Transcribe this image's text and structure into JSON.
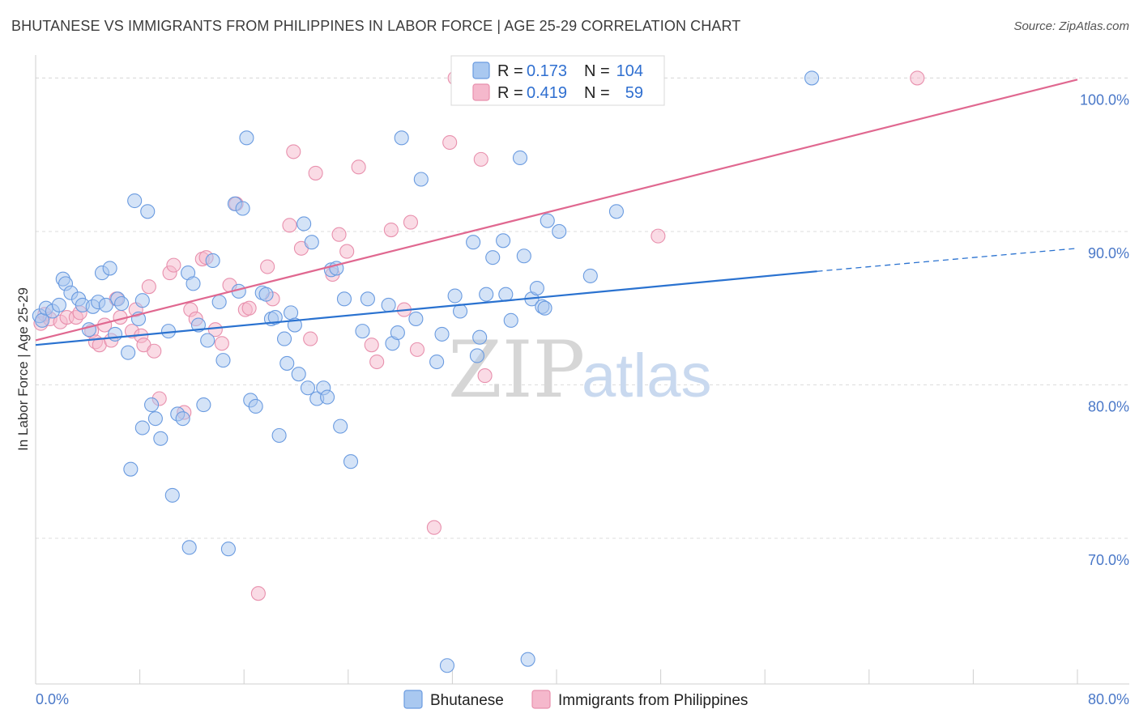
{
  "header": {
    "title": "BHUTANESE VS IMMIGRANTS FROM PHILIPPINES IN LABOR FORCE | AGE 25-29 CORRELATION CHART",
    "source": "Source: ZipAtlas.com"
  },
  "watermark": {
    "zip": "ZIP",
    "atlas": "atlas"
  },
  "legend": {
    "rows": [
      {
        "r_label": "R =",
        "r_value": "0.173",
        "n_label": "N =",
        "n_value": "104"
      },
      {
        "r_label": "R =",
        "r_value": "0.419",
        "n_label": "N =",
        "n_value": "59"
      }
    ]
  },
  "bottom_legend": [
    {
      "label": "Bhutanese"
    },
    {
      "label": "Immigrants from Philippines"
    }
  ],
  "colors": {
    "blue_fill": "#a9c8f0",
    "blue_stroke": "#6a9be0",
    "blue_line": "#2a72d0",
    "pink_fill": "#f5b8cc",
    "pink_stroke": "#e890ad",
    "pink_line": "#e06890",
    "grid": "#dcdcdc",
    "axis_text": "#4a78c8"
  },
  "chart_data": {
    "type": "scatter",
    "title": "BHUTANESE VS IMMIGRANTS FROM PHILIPPINES IN LABOR FORCE | AGE 25-29 CORRELATION CHART",
    "xlabel": "",
    "ylabel": "In Labor Force | Age 25-29",
    "xlim": [
      0,
      80
    ],
    "ylim": [
      60.5,
      101.5
    ],
    "x_tick_labels": [
      "0.0%",
      "80.0%"
    ],
    "y_ticks": [
      70,
      80,
      90,
      100
    ],
    "y_tick_labels": [
      "70.0%",
      "80.0%",
      "90.0%",
      "100.0%"
    ],
    "grid": true,
    "legend_position": "top-center",
    "series": [
      {
        "name": "Bhutanese",
        "r": 0.173,
        "n": 104,
        "trend": {
          "x": [
            0,
            60
          ],
          "y": [
            82.6,
            87.4
          ],
          "extended_to": [
            80,
            88.9
          ]
        },
        "points": [
          [
            0.3,
            84.5
          ],
          [
            0.5,
            84.2
          ],
          [
            0.8,
            85
          ],
          [
            1.3,
            84.8
          ],
          [
            1.8,
            85.2
          ],
          [
            2.1,
            86.9
          ],
          [
            2.3,
            86.6
          ],
          [
            2.7,
            86
          ],
          [
            3.3,
            85.6
          ],
          [
            3.6,
            85.2
          ],
          [
            4.1,
            83.6
          ],
          [
            4.4,
            85.1
          ],
          [
            4.8,
            85.4
          ],
          [
            5.1,
            87.3
          ],
          [
            5.4,
            85.2
          ],
          [
            5.7,
            87.6
          ],
          [
            6.1,
            83.3
          ],
          [
            6.3,
            85.6
          ],
          [
            6.6,
            85.3
          ],
          [
            7.1,
            82.1
          ],
          [
            7.6,
            92
          ],
          [
            7.9,
            84.3
          ],
          [
            8.2,
            85.5
          ],
          [
            8.6,
            91.3
          ],
          [
            8.9,
            78.7
          ],
          [
            9.2,
            77.8
          ],
          [
            9.6,
            76.5
          ],
          [
            10.2,
            83.5
          ],
          [
            10.5,
            72.8
          ],
          [
            10.9,
            78.1
          ],
          [
            11.3,
            77.8
          ],
          [
            11.7,
            87.3
          ],
          [
            12.1,
            86.6
          ],
          [
            12.5,
            83.9
          ],
          [
            12.9,
            78.7
          ],
          [
            13.2,
            82.9
          ],
          [
            13.6,
            88.1
          ],
          [
            14.1,
            85.4
          ],
          [
            14.4,
            81.6
          ],
          [
            15.3,
            91.8
          ],
          [
            15.6,
            86.1
          ],
          [
            15.9,
            91.5
          ],
          [
            16.2,
            96.1
          ],
          [
            16.5,
            79
          ],
          [
            16.9,
            78.6
          ],
          [
            17.4,
            86
          ],
          [
            17.7,
            85.9
          ],
          [
            18.1,
            84.3
          ],
          [
            18.4,
            84.4
          ],
          [
            18.7,
            76.7
          ],
          [
            19.1,
            83
          ],
          [
            19.3,
            81.4
          ],
          [
            19.6,
            84.7
          ],
          [
            19.9,
            83.9
          ],
          [
            20.2,
            80.7
          ],
          [
            20.6,
            90.5
          ],
          [
            20.9,
            79.8
          ],
          [
            21.2,
            89.3
          ],
          [
            21.6,
            79.1
          ],
          [
            22.1,
            79.8
          ],
          [
            22.4,
            79.2
          ],
          [
            22.7,
            87.5
          ],
          [
            23.1,
            87.6
          ],
          [
            23.4,
            77.3
          ],
          [
            23.7,
            85.6
          ],
          [
            24.2,
            75
          ],
          [
            25.1,
            83.5
          ],
          [
            25.5,
            85.6
          ],
          [
            27.1,
            85.2
          ],
          [
            27.4,
            82.7
          ],
          [
            27.8,
            83.4
          ],
          [
            28.1,
            96.1
          ],
          [
            29.2,
            84.3
          ],
          [
            29.6,
            93.4
          ],
          [
            30.8,
            81.5
          ],
          [
            31.2,
            83.3
          ],
          [
            32.2,
            85.8
          ],
          [
            32.6,
            84.8
          ],
          [
            33.6,
            89.3
          ],
          [
            33.9,
            81.9
          ],
          [
            34.1,
            83.1
          ],
          [
            34.6,
            85.9
          ],
          [
            35.1,
            88.3
          ],
          [
            35.9,
            89.4
          ],
          [
            36.1,
            85.9
          ],
          [
            36.5,
            84.2
          ],
          [
            37.2,
            94.8
          ],
          [
            37.5,
            88.4
          ],
          [
            38.1,
            85.6
          ],
          [
            38.5,
            86.3
          ],
          [
            38.9,
            85.1
          ],
          [
            39.1,
            85
          ],
          [
            39.3,
            90.7
          ],
          [
            40.2,
            90
          ],
          [
            42.6,
            87.1
          ],
          [
            44.6,
            91.3
          ],
          [
            59.6,
            100
          ],
          [
            31.6,
            61.7
          ],
          [
            37.8,
            62.1
          ],
          [
            11.8,
            69.4
          ],
          [
            14.8,
            69.3
          ],
          [
            7.3,
            74.5
          ],
          [
            8.2,
            77.2
          ]
        ]
      },
      {
        "name": "Immigrants from Philippines",
        "r": 0.419,
        "n": 59,
        "trend": {
          "x": [
            0,
            80
          ],
          "y": [
            82.9,
            99.9
          ]
        },
        "points": [
          [
            0.4,
            84
          ],
          [
            0.7,
            84.6
          ],
          [
            1.1,
            84.3
          ],
          [
            1.9,
            84.1
          ],
          [
            2.4,
            84.4
          ],
          [
            3.1,
            84.4
          ],
          [
            3.4,
            84.7
          ],
          [
            4.3,
            83.5
          ],
          [
            4.6,
            82.8
          ],
          [
            4.9,
            82.6
          ],
          [
            5.3,
            83.9
          ],
          [
            5.8,
            82.9
          ],
          [
            6.2,
            85.6
          ],
          [
            6.5,
            84.4
          ],
          [
            7.4,
            83.5
          ],
          [
            7.7,
            84.9
          ],
          [
            8.1,
            83.2
          ],
          [
            8.3,
            82.6
          ],
          [
            8.7,
            86.4
          ],
          [
            9.1,
            82.2
          ],
          [
            9.5,
            79.1
          ],
          [
            10.3,
            87.3
          ],
          [
            10.6,
            87.8
          ],
          [
            11.4,
            78.2
          ],
          [
            11.9,
            84.9
          ],
          [
            12.3,
            84.3
          ],
          [
            12.8,
            88.2
          ],
          [
            13.1,
            88.3
          ],
          [
            13.8,
            83.6
          ],
          [
            14.3,
            82.7
          ],
          [
            14.9,
            86.5
          ],
          [
            15.4,
            91.8
          ],
          [
            16.1,
            84.9
          ],
          [
            16.4,
            85
          ],
          [
            17.1,
            66.4
          ],
          [
            17.8,
            87.7
          ],
          [
            18.2,
            85.6
          ],
          [
            19.5,
            90.4
          ],
          [
            19.8,
            95.2
          ],
          [
            20.4,
            88.9
          ],
          [
            21.1,
            83
          ],
          [
            21.5,
            93.8
          ],
          [
            22.8,
            87.2
          ],
          [
            23.3,
            89.8
          ],
          [
            23.9,
            88.7
          ],
          [
            24.8,
            94.2
          ],
          [
            25.8,
            82.6
          ],
          [
            26.2,
            81.5
          ],
          [
            27.3,
            90.1
          ],
          [
            28.3,
            84.9
          ],
          [
            28.8,
            90.6
          ],
          [
            29.3,
            82.3
          ],
          [
            30.6,
            70.7
          ],
          [
            31.8,
            95.8
          ],
          [
            32.2,
            100
          ],
          [
            34.2,
            94.7
          ],
          [
            34.5,
            80.6
          ],
          [
            47.8,
            89.7
          ],
          [
            67.7,
            100
          ]
        ]
      }
    ]
  }
}
